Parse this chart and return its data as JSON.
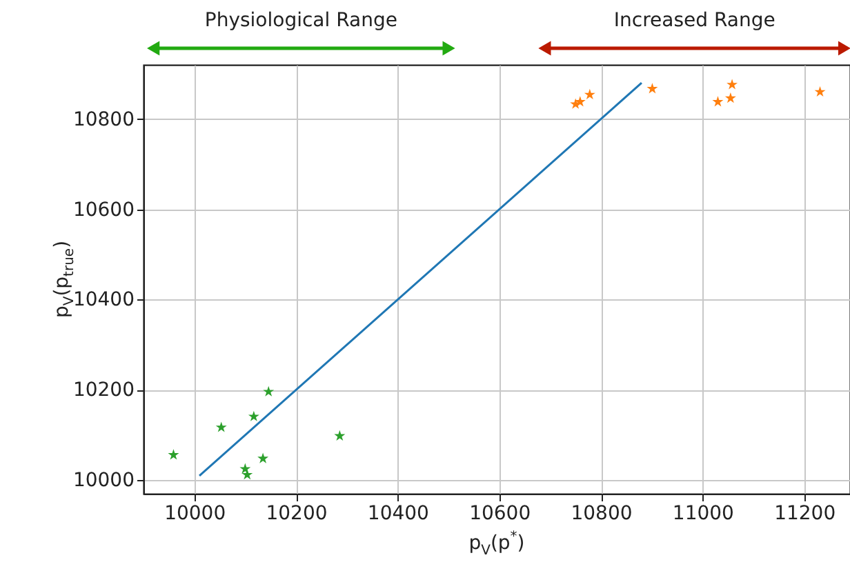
{
  "chart_data": {
    "type": "scatter",
    "xlabel": "p$_{V}$(p$^{*}$)",
    "ylabel": "p$_{V}$(p$_{true}$)",
    "series": [
      {
        "color": "#2ca02c",
        "marker": "star",
        "x": [
          9959,
          10053,
          10117,
          10146,
          10100,
          10104,
          10135,
          10286
        ],
        "values": [
          10056,
          10117,
          10141,
          10196,
          10025,
          10012,
          10048,
          10098
        ]
      },
      {
        "color": "#ff7f0e",
        "marker": "star",
        "x": [
          10750,
          10759,
          10778,
          10901,
          11030,
          11055,
          11058,
          11231
        ],
        "values": [
          10833,
          10838,
          10854,
          10867,
          10838,
          10846,
          10876,
          10860
        ]
      },
      {
        "type": "line",
        "color": "#1f77b4",
        "x": [
          10010,
          10880
        ],
        "values": [
          10010,
          10880
        ]
      }
    ],
    "xlim": [
      9900,
      11290
    ],
    "xticks": [
      10000,
      10200,
      10400,
      10600,
      10800,
      11000,
      11200
    ],
    "ylim": [
      9970,
      10920
    ],
    "yticks": [
      10000,
      10200,
      10400,
      10600,
      10800
    ],
    "grid": true,
    "annotations": [
      "Physiological Range",
      "Increased Range"
    ]
  }
}
